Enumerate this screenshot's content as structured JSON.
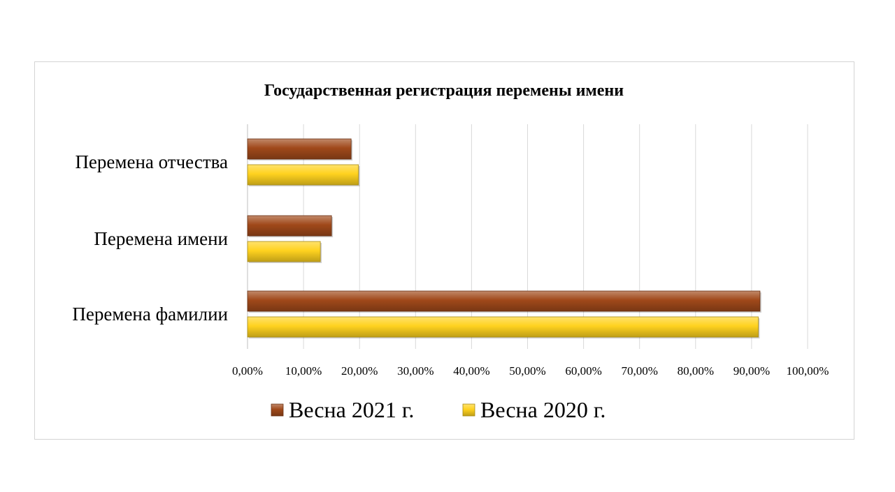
{
  "chart_data": {
    "type": "bar",
    "orientation": "horizontal",
    "title": "Государственная регистрация перемены имени",
    "xlabel": "",
    "ylabel": "",
    "categories": [
      "Перемена отчества",
      "Перемена имени",
      "Перемена фамилии"
    ],
    "series": [
      {
        "name": "Весна 2021 г.",
        "color": "#a0491a",
        "values": [
          18.5,
          15.0,
          91.5
        ]
      },
      {
        "name": "Весна 2020 г.",
        "color": "#ffd21f",
        "values": [
          19.8,
          13.0,
          91.2
        ]
      }
    ],
    "xlim": [
      0,
      100
    ],
    "ticks": [
      0,
      10,
      20,
      30,
      40,
      50,
      60,
      70,
      80,
      90,
      100
    ],
    "tick_labels": [
      "0,00%",
      "10,00%",
      "20,00%",
      "30,00%",
      "40,00%",
      "50,00%",
      "60,00%",
      "70,00%",
      "80,00%",
      "90,00%",
      "100,00%"
    ],
    "grid": "vertical",
    "legend_position": "bottom"
  }
}
